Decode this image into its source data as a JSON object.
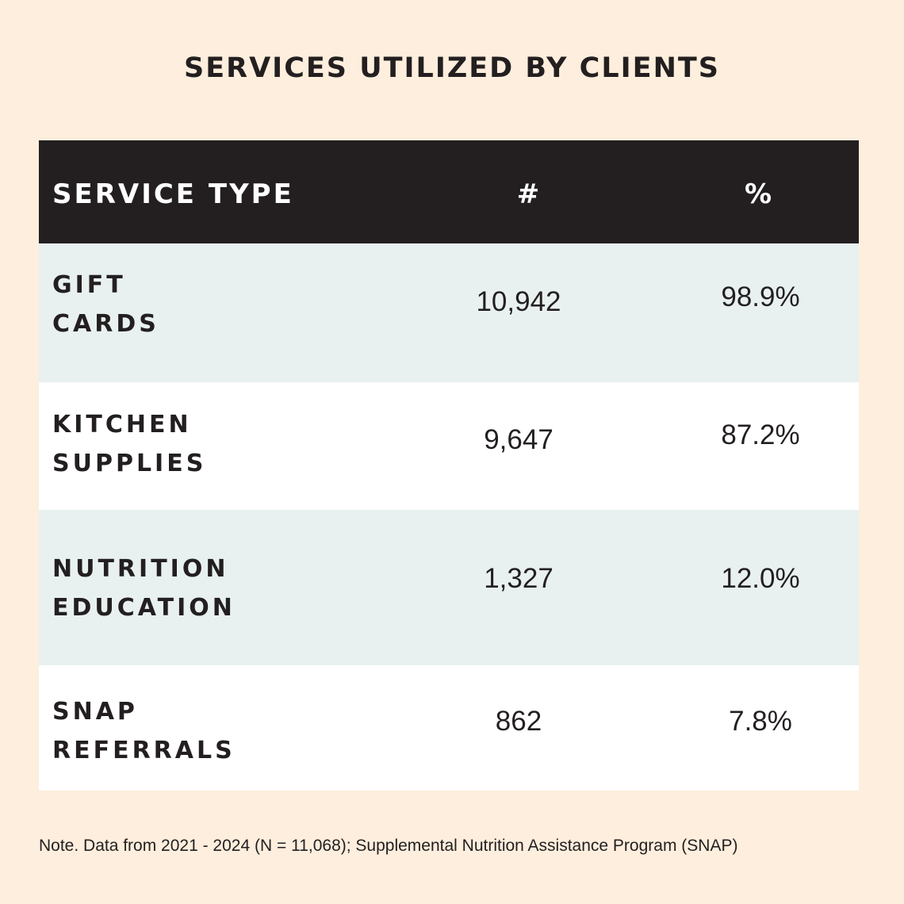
{
  "title": "SERVICES UTILIZED BY CLIENTS",
  "colors": {
    "background": "#fdeedd",
    "header_bg": "#231f20",
    "row_shaded": "#e8f1f0",
    "row_plain": "#ffffff",
    "text": "#231f20"
  },
  "chart_data": {
    "type": "table",
    "title": "SERVICES UTILIZED BY CLIENTS",
    "columns": [
      "SERVICE TYPE",
      "#",
      "%"
    ],
    "rows": [
      {
        "service": "GIFT CARDS",
        "line1": "GIFT",
        "line2": "CARDS",
        "count": "10,942",
        "percent": "98.9%"
      },
      {
        "service": "KITCHEN SUPPLIES",
        "line1": "KITCHEN",
        "line2": "SUPPLIES",
        "count": "9,647",
        "percent": "87.2%"
      },
      {
        "service": "NUTRITION EDUCATION",
        "line1": "NUTRITION",
        "line2": "EDUCATION",
        "count": "1,327",
        "percent": "12.0%"
      },
      {
        "service": "SNAP REFERRALS",
        "line1": "SNAP",
        "line2": "REFERRALS",
        "count": "862",
        "percent": "7.8%"
      }
    ]
  },
  "note": "Note. Data from 2021 - 2024 (N = 11,068); Supplemental Nutrition Assistance Program (SNAP)"
}
